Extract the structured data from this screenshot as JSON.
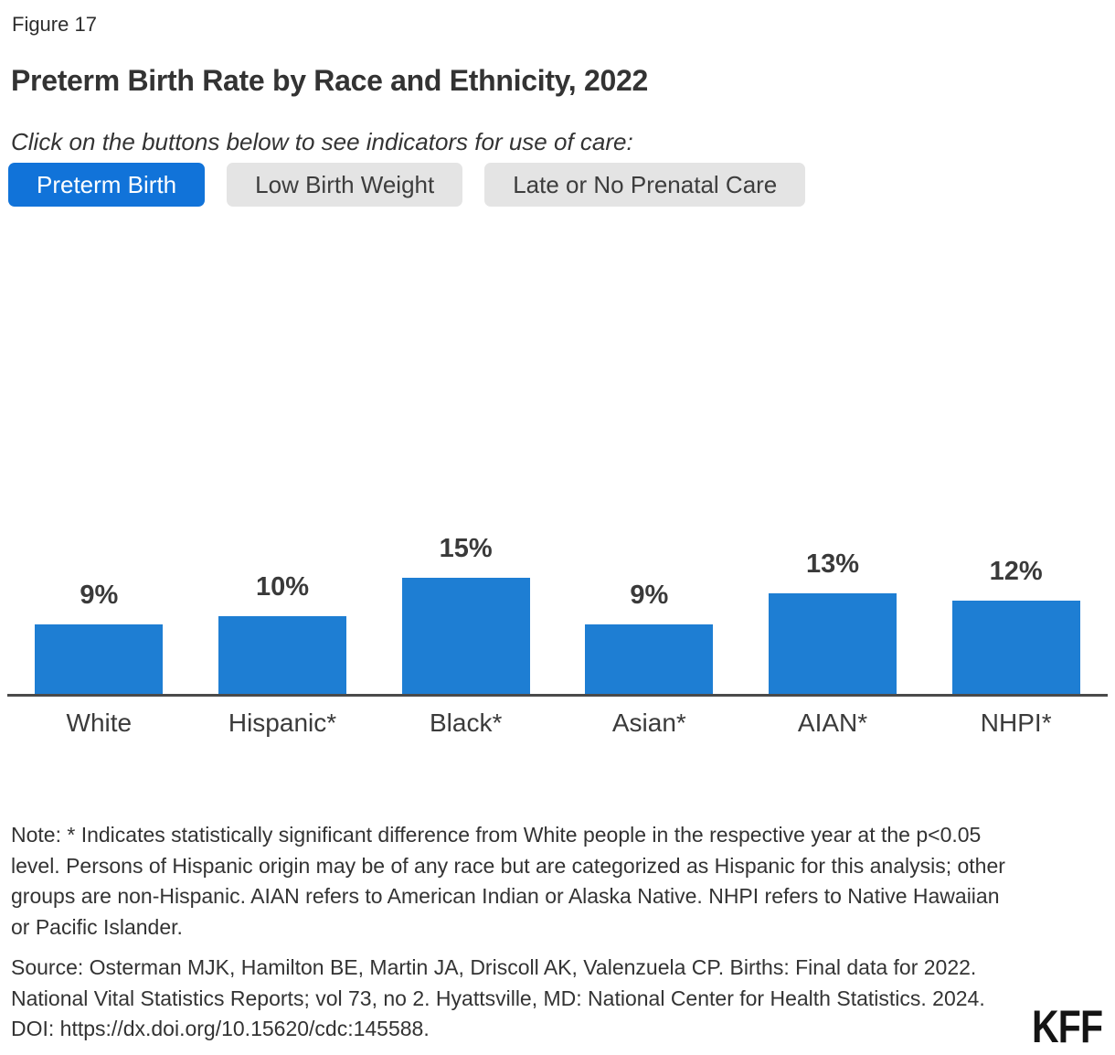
{
  "figure_label": "Figure 17",
  "title": "Preterm Birth Rate by Race and Ethnicity, 2022",
  "subtitle": "Click on the buttons below to see indicators for use of care:",
  "buttons": [
    {
      "label": "Preterm Birth",
      "active": true
    },
    {
      "label": "Low Birth Weight",
      "active": false
    },
    {
      "label": "Late or No Prenatal Care",
      "active": false
    }
  ],
  "chart_data": {
    "type": "bar",
    "title": "Preterm Birth Rate by Race and Ethnicity, 2022",
    "categories": [
      "White",
      "Hispanic*",
      "Black*",
      "Asian*",
      "AIAN*",
      "NHPI*"
    ],
    "values": [
      9,
      10,
      15,
      9,
      13,
      12
    ],
    "value_labels": [
      "9%",
      "10%",
      "15%",
      "9%",
      "13%",
      "12%"
    ],
    "xlabel": "",
    "ylabel": "",
    "ylim": [
      0,
      21
    ],
    "grid": false,
    "legend": false,
    "y_axis_visible": false,
    "bar_color": "#1e7ed3",
    "axis_line_color": "#4a4a4a"
  },
  "note": "Note: * Indicates statistically significant difference from White people in the respective year at the p<0.05 level. Persons of Hispanic origin may be of any race but are categorized as Hispanic for this analysis; other groups are non-Hispanic. AIAN refers to American Indian or Alaska Native. NHPI refers to Native Hawaiian or Pacific Islander.",
  "source": "Source: Osterman MJK, Hamilton BE, Martin JA, Driscoll AK, Valenzuela CP. Births: Final data for 2022. National Vital Statistics Reports; vol 73, no 2. Hyattsville, MD: National Center for Health Statistics. 2024. DOI: https://dx.doi.org/10.15620/cdc:145588.",
  "logo": "KFF",
  "colors": {
    "active_button_bg": "#1173d9",
    "active_button_text": "#ffffff",
    "inactive_button_bg": "#e4e4e4",
    "inactive_button_text": "#3d3d3d",
    "bar": "#1e7ed3",
    "text": "#333333",
    "axis_line": "#4a4a4a"
  }
}
